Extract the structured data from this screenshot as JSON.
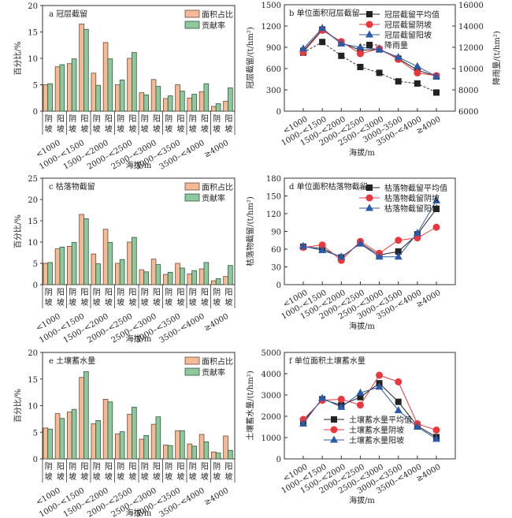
{
  "colors": {
    "area_bar": "#f5b995",
    "area_bar_edge": "#6b4a3a",
    "contrib_bar": "#8dc89e",
    "contrib_bar_edge": "#2f5a3c",
    "mean_line": "#222222",
    "shady_line": "#e8383d",
    "sunny_line": "#2b5aa8",
    "rain_line": "#333333",
    "axis": "#333333"
  },
  "chart_data": [
    {
      "id": "a",
      "type": "bar",
      "title": "a 冠层截留",
      "xlabel": "海拔/m",
      "ylabel": "百分比/%",
      "ylim": [
        0,
        20
      ],
      "yticks": [
        0,
        5,
        10,
        15,
        20
      ],
      "categories": [
        "<1000",
        "1000–<1500",
        "1500–<2000",
        "2000–<2500",
        "2500–<3000",
        "3000–<3500",
        "3500–<4000",
        "≥4000"
      ],
      "slopes": [
        "阴坡",
        "阳坡"
      ],
      "slope_labels": [
        [
          "阴",
          "坡"
        ],
        [
          "阳",
          "坡"
        ]
      ],
      "legend": [
        "面积占比",
        "贡献率"
      ],
      "legend_position": "top-right",
      "series": [
        {
          "name": "面积占比",
          "values": [
            5.0,
            8.4,
            9.0,
            16.5,
            7.2,
            13.0,
            5.0,
            10.0,
            3.5,
            6.0,
            2.4,
            5.0,
            2.5,
            3.7,
            0.9,
            1.9
          ]
        },
        {
          "name": "贡献率",
          "values": [
            5.2,
            8.8,
            9.9,
            15.5,
            4.9,
            9.9,
            5.9,
            11.1,
            3.1,
            4.7,
            2.9,
            3.8,
            3.2,
            5.2,
            1.4,
            4.4
          ]
        }
      ]
    },
    {
      "id": "b",
      "type": "line",
      "title": "b 单位面积冠层截留",
      "xlabel": "海拔/m",
      "ylabel": "冠层截留/(t/hm²)",
      "ylabel_right": "降雨量/(t/hm²)",
      "ylim": [
        0,
        1500
      ],
      "yticks": [
        0,
        300,
        600,
        900,
        1200,
        1500
      ],
      "ylim_right": [
        6000,
        16000
      ],
      "yticks_right": [
        6000,
        8000,
        10000,
        12000,
        14000,
        16000
      ],
      "categories": [
        "<1000",
        "1000–<1500",
        "1500–<2000",
        "2000–<2500",
        "2500–<3000",
        "3000–3500",
        "3500–<4000",
        "≥4000"
      ],
      "legend_position": "top-right",
      "series": [
        {
          "name": "冠层截留平均值",
          "marker": "square",
          "axis": "left",
          "values": [
            850,
            1150,
            960,
            860,
            870,
            740,
            580,
            490
          ]
        },
        {
          "name": "冠层截留阴坡",
          "marker": "circle",
          "axis": "left",
          "values": [
            830,
            1140,
            980,
            810,
            880,
            730,
            540,
            500
          ]
        },
        {
          "name": "冠层截留阳坡",
          "marker": "triangle",
          "axis": "left",
          "values": [
            880,
            1170,
            950,
            900,
            870,
            760,
            630,
            490
          ]
        },
        {
          "name": "降雨量",
          "marker": "square",
          "axis": "right",
          "dashed": true,
          "values": [
            11500,
            12500,
            11200,
            10150,
            9600,
            8800,
            8600,
            7750
          ]
        }
      ]
    },
    {
      "id": "c",
      "type": "bar",
      "title": "c 枯落物截留",
      "xlabel": "海拔/m",
      "ylabel": "百分比/%",
      "ylim": [
        0,
        25
      ],
      "yticks": [
        0,
        5,
        10,
        15,
        20,
        25
      ],
      "categories": [
        "<1000",
        "1000–<1500",
        "1500–<2000",
        "2000–<2500",
        "2500–<3000",
        "3000–<3500",
        "3500–<4000",
        "≥4000"
      ],
      "slopes": [
        "阴坡",
        "阳坡"
      ],
      "slope_labels": [
        [
          "阴",
          "坡"
        ],
        [
          "阳",
          "坡"
        ]
      ],
      "legend": [
        "面积占比",
        "贡献率"
      ],
      "legend_position": "top-right",
      "series": [
        {
          "name": "面积占比",
          "values": [
            5.0,
            8.4,
            9.0,
            16.5,
            7.2,
            13.0,
            5.0,
            10.0,
            3.5,
            6.0,
            2.4,
            5.0,
            2.5,
            3.7,
            0.9,
            1.9
          ]
        },
        {
          "name": "贡献率",
          "values": [
            5.2,
            8.8,
            9.9,
            15.5,
            4.9,
            9.9,
            5.9,
            11.1,
            3.0,
            4.7,
            2.9,
            3.9,
            3.3,
            5.2,
            1.4,
            4.5
          ]
        }
      ]
    },
    {
      "id": "d",
      "type": "line",
      "title": "d 单位面积枯落物截留",
      "xlabel": "海拔/m",
      "ylabel": "枯落物截留/(t/hm²)",
      "ylim": [
        0,
        180
      ],
      "yticks": [
        0,
        30,
        60,
        90,
        120,
        150,
        180
      ],
      "categories": [
        "<1000",
        "1000–<1500",
        "1500–<2000",
        "2000–<2500",
        "2500–<3000",
        "3000–<3500",
        "3500–<4000",
        "≥4000"
      ],
      "legend_position": "top-right",
      "series": [
        {
          "name": "枯落物截留平均值",
          "marker": "square",
          "values": [
            64,
            61,
            46,
            70,
            50,
            56,
            85,
            128
          ]
        },
        {
          "name": "枯落物截留阴坡",
          "marker": "circle",
          "values": [
            63,
            67,
            41,
            73,
            53,
            75,
            79,
            97
          ]
        },
        {
          "name": "枯落物截留阳坡",
          "marker": "triangle",
          "values": [
            65,
            58,
            47,
            69,
            47,
            47,
            87,
            142
          ]
        }
      ]
    },
    {
      "id": "e",
      "type": "bar",
      "title": "e 土壤蓄水量",
      "xlabel": "海拔/m",
      "ylabel": "百分比/%",
      "ylim": [
        0,
        20
      ],
      "yticks": [
        0,
        5,
        10,
        15,
        20
      ],
      "categories": [
        "<1000",
        "1000–<1500",
        "1500–<2000",
        "2000–<2500",
        "2500–<3000",
        "3000–<3500",
        "3500–<4000",
        "≥4000"
      ],
      "slopes": [
        "阴坡",
        "阳坡"
      ],
      "slope_labels": [
        [
          "阴",
          "坡"
        ],
        [
          "阳",
          "坡"
        ]
      ],
      "legend": [
        "面积占比",
        "贡献率"
      ],
      "legend_position": "top-right",
      "series": [
        {
          "name": "面积占比",
          "values": [
            5.8,
            8.5,
            8.8,
            15.3,
            6.6,
            11.2,
            4.7,
            8.4,
            3.7,
            6.5,
            2.6,
            5.3,
            2.8,
            4.6,
            1.3,
            4.3
          ]
        },
        {
          "name": "贡献率",
          "values": [
            5.6,
            7.6,
            9.3,
            16.4,
            7.2,
            10.7,
            5.1,
            9.7,
            4.4,
            7.9,
            2.5,
            5.3,
            2.4,
            3.2,
            1.1,
            1.6
          ]
        }
      ]
    },
    {
      "id": "f",
      "type": "line",
      "title": "f 单位面积土壤蓄水量",
      "xlabel": "海拔/m",
      "ylabel": "土壤蓄水量/(t/hm²)",
      "ylim": [
        0,
        5000
      ],
      "yticks": [
        0,
        1000,
        2000,
        3000,
        4000,
        5000
      ],
      "categories": [
        "<1000",
        "1000–<1500",
        "1500–<2000",
        "2000–<2500",
        "2500–<3000",
        "3000–<3500",
        "3500–<4000",
        "≥4000"
      ],
      "legend_position": "bottom-center",
      "series": [
        {
          "name": "土壤蓄水量平均值",
          "marker": "square",
          "values": [
            1750,
            2800,
            2520,
            2900,
            3550,
            2680,
            1550,
            1020
          ]
        },
        {
          "name": "土壤蓄水量阴坡",
          "marker": "circle",
          "values": [
            1850,
            2750,
            2800,
            2530,
            3930,
            3620,
            1650,
            1350
          ]
        },
        {
          "name": "土壤蓄水量阳坡",
          "marker": "triangle",
          "values": [
            1650,
            2850,
            2430,
            3100,
            3380,
            2280,
            1500,
            930
          ]
        }
      ]
    }
  ]
}
